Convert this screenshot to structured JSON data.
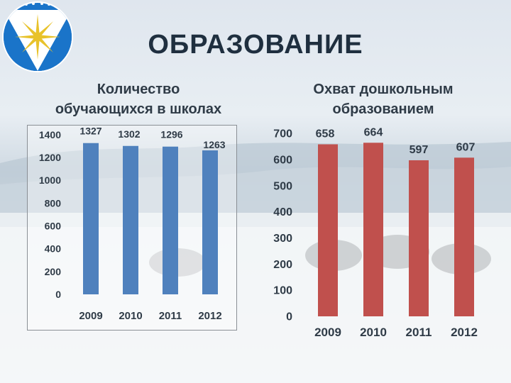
{
  "slide": {
    "title": "ОБРАЗОВАНИЕ"
  },
  "colors": {
    "blue": "#4f81bd",
    "red": "#c0504d",
    "title": "#1f2f3f"
  },
  "chart_data": [
    {
      "type": "bar",
      "title": "Количество обучающихся в школах",
      "title_lines": [
        "Количество",
        "обучающихся в школах"
      ],
      "categories": [
        "2009",
        "2010",
        "2011",
        "2012"
      ],
      "values": [
        1327,
        1302,
        1296,
        1263
      ],
      "ylim": [
        0,
        1400
      ],
      "yticks": [
        0,
        200,
        400,
        600,
        800,
        1000,
        1200,
        1400
      ],
      "color": "#4f81bd",
      "grid": false
    },
    {
      "type": "bar",
      "title": "Охват дошкольным образованием",
      "title_lines": [
        "Охват дошкольным",
        "образованием"
      ],
      "categories": [
        "2009",
        "2010",
        "2011",
        "2012"
      ],
      "values": [
        658,
        664,
        597,
        607
      ],
      "ylim": [
        0,
        700
      ],
      "yticks": [
        0,
        100,
        200,
        300,
        400,
        500,
        600,
        700
      ],
      "color": "#c0504d",
      "grid": false
    }
  ]
}
